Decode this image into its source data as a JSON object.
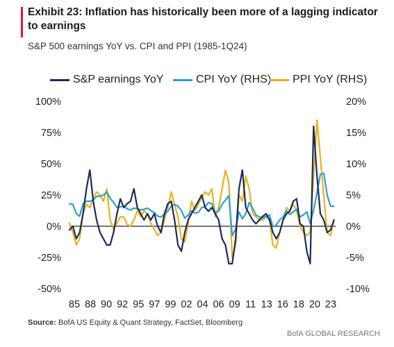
{
  "header": {
    "title": "Exhibit 23: Inflation has historically been more of a lagging indicator to earnings",
    "subtitle": "S&P 500 earnings YoY vs. CPI and PPI (1985-1Q24)"
  },
  "footer": {
    "source_label": "Source:",
    "source_text": " BofA US Equity & Quant Strategy, FactSet, Bloomberg",
    "brand": "BofA GLOBAL RESEARCH"
  },
  "colors": {
    "accent": "#e31837",
    "eps": "#1b2a5c",
    "cpi": "#2aa0d2",
    "ppi": "#e8b21c",
    "zero": "#222222"
  },
  "chart_data": {
    "type": "line",
    "legend_position": "top",
    "grid": false,
    "x_ticks": [
      "85",
      "88",
      "90",
      "92",
      "95",
      "97",
      "99",
      "02",
      "04",
      "06",
      "09",
      "11",
      "13",
      "16",
      "18",
      "20",
      "23"
    ],
    "x_range": [
      1985,
      2024.25
    ],
    "left_axis": {
      "ylim": [
        -50,
        100
      ],
      "ticks": [
        -50,
        -25,
        0,
        25,
        50,
        75,
        100
      ],
      "tick_labels": [
        "-50%",
        "-25%",
        "0%",
        "25%",
        "50%",
        "75%",
        "100%"
      ]
    },
    "right_axis": {
      "ylim": [
        -10,
        20
      ],
      "ticks": [
        -10,
        -5,
        0,
        5,
        10,
        15,
        20
      ],
      "tick_labels": [
        "-10%",
        "-5%",
        "0%",
        "5%",
        "10%",
        "15%",
        "20%"
      ]
    },
    "series": [
      {
        "name": "S&P earnings YoY",
        "axis": "left",
        "color": "#1b2a5c",
        "x": [
          1985,
          1985.5,
          1986,
          1986.5,
          1987,
          1987.5,
          1988,
          1988.5,
          1989,
          1989.5,
          1990,
          1990.5,
          1991,
          1991.5,
          1992,
          1992.5,
          1993,
          1993.5,
          1994,
          1994.5,
          1995,
          1995.5,
          1996,
          1996.5,
          1997,
          1997.5,
          1998,
          1998.5,
          1999,
          1999.5,
          2000,
          2000.5,
          2001,
          2001.5,
          2002,
          2002.5,
          2003,
          2003.5,
          2004,
          2004.5,
          2005,
          2005.5,
          2006,
          2006.5,
          2007,
          2007.5,
          2008,
          2008.5,
          2009,
          2009.5,
          2010,
          2010.5,
          2011,
          2011.5,
          2012,
          2012.5,
          2013,
          2013.5,
          2014,
          2014.5,
          2015,
          2015.5,
          2016,
          2016.5,
          2017,
          2017.5,
          2018,
          2018.5,
          2019,
          2019.5,
          2020,
          2020.5,
          2021,
          2021.5,
          2022,
          2022.5,
          2023,
          2023.5,
          2024
        ],
        "y": [
          -3,
          0,
          -10,
          -5,
          10,
          30,
          45,
          20,
          5,
          -5,
          -10,
          -15,
          -15,
          -5,
          10,
          22,
          15,
          18,
          20,
          30,
          15,
          10,
          5,
          10,
          5,
          10,
          0,
          -5,
          10,
          18,
          20,
          5,
          -15,
          -20,
          -5,
          5,
          10,
          15,
          20,
          25,
          15,
          12,
          15,
          10,
          5,
          -10,
          -15,
          -30,
          -30,
          -10,
          30,
          45,
          15,
          10,
          5,
          2,
          5,
          8,
          10,
          5,
          -5,
          -10,
          -5,
          5,
          10,
          12,
          20,
          22,
          2,
          0,
          -20,
          -30,
          80,
          40,
          10,
          5,
          -5,
          -3,
          5
        ]
      },
      {
        "name": "CPI YoY (RHS)",
        "axis": "right",
        "color": "#2aa0d2",
        "x": [
          1985,
          1985.5,
          1986,
          1986.5,
          1987,
          1987.5,
          1988,
          1988.5,
          1989,
          1989.5,
          1990,
          1990.5,
          1991,
          1991.5,
          1992,
          1992.5,
          1993,
          1993.5,
          1994,
          1994.5,
          1995,
          1995.5,
          1996,
          1996.5,
          1997,
          1997.5,
          1998,
          1998.5,
          1999,
          1999.5,
          2000,
          2000.5,
          2001,
          2001.5,
          2002,
          2002.5,
          2003,
          2003.5,
          2004,
          2004.5,
          2005,
          2005.5,
          2006,
          2006.5,
          2007,
          2007.5,
          2008,
          2008.5,
          2009,
          2009.5,
          2010,
          2010.5,
          2011,
          2011.5,
          2012,
          2012.5,
          2013,
          2013.5,
          2014,
          2014.5,
          2015,
          2015.5,
          2016,
          2016.5,
          2017,
          2017.5,
          2018,
          2018.5,
          2019,
          2019.5,
          2020,
          2020.5,
          2021,
          2021.5,
          2022,
          2022.5,
          2023,
          2023.5,
          2024
        ],
        "y": [
          3.6,
          3.5,
          2.0,
          1.6,
          3.6,
          4.0,
          4.0,
          4.2,
          4.8,
          4.8,
          5.0,
          5.5,
          4.5,
          3.8,
          3.0,
          3.1,
          3.2,
          2.8,
          2.6,
          2.9,
          2.8,
          2.6,
          2.7,
          2.9,
          2.5,
          2.2,
          1.6,
          1.5,
          1.9,
          2.4,
          3.2,
          3.5,
          3.2,
          2.5,
          1.3,
          1.8,
          2.5,
          2.1,
          2.2,
          3.0,
          3.1,
          3.8,
          3.6,
          2.2,
          2.4,
          3.5,
          4.2,
          4.9,
          -1.5,
          -0.5,
          2.3,
          1.2,
          2.0,
          3.8,
          2.9,
          1.8,
          1.5,
          1.3,
          1.6,
          1.8,
          -0.1,
          0.2,
          1.0,
          1.5,
          2.5,
          1.9,
          2.3,
          2.7,
          1.5,
          1.8,
          2.3,
          0.5,
          2.6,
          5.4,
          8.3,
          8.5,
          5.0,
          3.2,
          3.2
        ]
      },
      {
        "name": "PPI YoY (RHS)",
        "axis": "right",
        "color": "#e8b21c",
        "x": [
          1985,
          1985.5,
          1986,
          1986.5,
          1987,
          1987.5,
          1988,
          1988.5,
          1989,
          1989.5,
          1990,
          1990.5,
          1991,
          1991.5,
          1992,
          1992.5,
          1993,
          1993.5,
          1994,
          1994.5,
          1995,
          1995.5,
          1996,
          1996.5,
          1997,
          1997.5,
          1998,
          1998.5,
          1999,
          1999.5,
          2000,
          2000.5,
          2001,
          2001.5,
          2002,
          2002.5,
          2003,
          2003.5,
          2004,
          2004.5,
          2005,
          2005.5,
          2006,
          2006.5,
          2007,
          2007.5,
          2008,
          2008.5,
          2009,
          2009.5,
          2010,
          2010.5,
          2011,
          2011.5,
          2012,
          2012.5,
          2013,
          2013.5,
          2014,
          2014.5,
          2015,
          2015.5,
          2016,
          2016.5,
          2017,
          2017.5,
          2018,
          2018.5,
          2019,
          2019.5,
          2020,
          2020.5,
          2021,
          2021.5,
          2022,
          2022.5,
          2023,
          2023.5,
          2024
        ],
        "y": [
          0.5,
          -1.0,
          -3.0,
          -2.0,
          2.0,
          3.5,
          3.0,
          4.5,
          5.5,
          5.0,
          4.0,
          6.0,
          1.0,
          -0.5,
          0.5,
          1.5,
          1.5,
          0.3,
          0.0,
          1.0,
          2.5,
          1.5,
          2.5,
          2.0,
          0.5,
          -0.5,
          -1.5,
          -1.0,
          1.0,
          3.0,
          5.5,
          3.5,
          1.5,
          -2.0,
          -2.5,
          0.5,
          4.0,
          2.5,
          3.5,
          4.5,
          5.5,
          5.0,
          6.0,
          1.5,
          3.0,
          6.0,
          9.0,
          7.0,
          -5.0,
          -3.0,
          5.0,
          4.0,
          8.0,
          6.0,
          2.0,
          1.5,
          1.0,
          1.0,
          1.5,
          1.0,
          -3.0,
          -3.5,
          -1.0,
          1.0,
          3.0,
          2.5,
          3.5,
          2.5,
          0.0,
          -1.0,
          -1.5,
          -1.0,
          8.0,
          17.0,
          11.0,
          5.0,
          -1.0,
          -1.5,
          1.0
        ]
      }
    ]
  }
}
